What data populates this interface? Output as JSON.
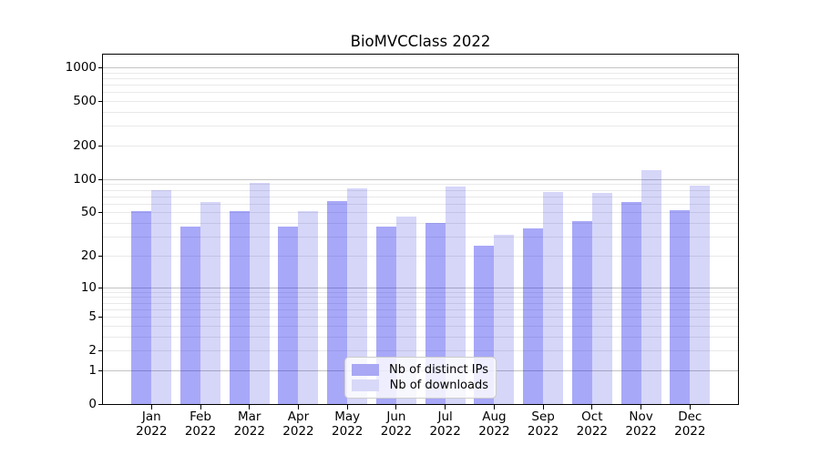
{
  "title": "BioMVCClass 2022",
  "chart_data": {
    "type": "bar",
    "title": "BioMVCClass 2022",
    "categories": [
      "Jan",
      "Feb",
      "Mar",
      "Apr",
      "May",
      "Jun",
      "Jul",
      "Aug",
      "Sep",
      "Oct",
      "Nov",
      "Dec"
    ],
    "x_tick_year": "2022",
    "series": [
      {
        "name": "Nb of distinct IPs",
        "color": "rgba(15,15,235,0.36)",
        "solid_color": "#a8a8f4",
        "values": [
          51,
          37,
          51,
          37,
          63,
          37,
          40,
          25,
          36,
          42,
          62,
          52
        ]
      },
      {
        "name": "Nb of downloads",
        "color": "rgba(0,0,215,0.16)",
        "solid_color": "#d8d8f8",
        "values": [
          80,
          62,
          92,
          51,
          82,
          46,
          85,
          31,
          77,
          75,
          120,
          88
        ]
      }
    ],
    "y_scale": "log1p",
    "ylim": [
      0,
      1300
    ],
    "y_ticks": [
      0,
      1,
      2,
      5,
      10,
      20,
      50,
      100,
      200,
      500,
      1000
    ],
    "y_decade_ticks": [
      1,
      10,
      100,
      1000
    ],
    "y_minor_ticks": [
      3,
      4,
      6,
      7,
      8,
      9,
      30,
      40,
      60,
      70,
      80,
      90,
      300,
      400,
      600,
      700,
      800,
      900
    ],
    "grid": true,
    "legend_position": "lower center",
    "colors": {
      "grid_major": "#c3c3c3",
      "grid_minor": "#e9e9e9",
      "spine": "#000000",
      "text": "#000000"
    }
  }
}
